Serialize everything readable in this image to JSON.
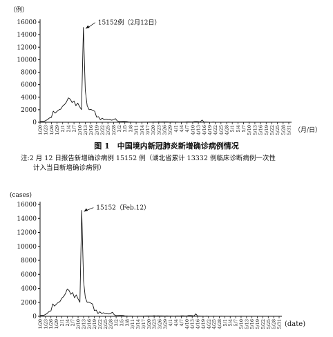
{
  "chart_data": [
    {
      "type": "line",
      "y_unit": "（例）",
      "x_unit": "（月/日）",
      "ylim": [
        0,
        16000
      ],
      "yticks": [
        0,
        2000,
        4000,
        6000,
        8000,
        10000,
        12000,
        14000,
        16000
      ],
      "x_tick_labels": [
        "1/20",
        "1/23",
        "1/26",
        "1/29",
        "2/1",
        "2/4",
        "2/7",
        "2/10",
        "2/13",
        "2/16",
        "2/19",
        "2/22",
        "2/25",
        "2/28",
        "3/2",
        "3/5",
        "3/8",
        "3/11",
        "3/14",
        "3/17",
        "3/20",
        "3/23",
        "3/26",
        "3/29",
        "4/1",
        "4/4",
        "4/7",
        "4/10",
        "4/13",
        "4/16",
        "4/19",
        "4/22",
        "4/25",
        "4/28",
        "5/1",
        "5/4",
        "5/7",
        "5/10",
        "5/13",
        "5/16",
        "5/19",
        "5/22",
        "5/25",
        "5/28",
        "5/31"
      ],
      "annotation": "15152例（2月12日）",
      "title": "图 1　中国境内新冠肺炎新增确诊病例情况",
      "note_line1": "注:2 月 12 日报告新增确诊病例 15152 例（湖北省累计 13332 例临床诊断病例一次性",
      "note_line2": "计入当日新增确诊病例）",
      "series": [
        {
          "x": [
            "1/20",
            "1/21",
            "1/22",
            "1/23",
            "1/24",
            "1/25",
            "1/26",
            "1/27",
            "1/28",
            "1/29",
            "1/30",
            "1/31",
            "2/1",
            "2/2",
            "2/3",
            "2/4",
            "2/5",
            "2/6",
            "2/7",
            "2/8",
            "2/9",
            "2/10",
            "2/11",
            "2/12",
            "2/13",
            "2/14",
            "2/15",
            "2/16",
            "2/17",
            "2/18",
            "2/19",
            "2/20",
            "2/21",
            "2/22",
            "2/23",
            "2/24",
            "2/25",
            "2/26",
            "2/27",
            "2/28",
            "2/29",
            "3/1",
            "3/2",
            "3/3",
            "3/4",
            "3/5",
            "3/6",
            "3/7",
            "3/8",
            "3/9",
            "3/10",
            "3/11",
            "3/12",
            "3/13",
            "3/14",
            "3/15",
            "3/16",
            "3/17",
            "3/18",
            "3/19",
            "3/20",
            "3/21",
            "3/22",
            "3/23",
            "3/24",
            "3/25",
            "3/26",
            "3/27",
            "3/28",
            "3/29",
            "3/30",
            "3/31",
            "4/1",
            "4/2",
            "4/3",
            "4/4",
            "4/5",
            "4/6",
            "4/7",
            "4/8",
            "4/9",
            "4/10",
            "4/11",
            "4/12",
            "4/13",
            "4/14",
            "4/15",
            "4/16",
            "4/17",
            "4/18",
            "4/19",
            "4/20",
            "4/21",
            "4/22",
            "4/23",
            "4/24",
            "4/25",
            "4/26",
            "4/27",
            "4/28",
            "4/29",
            "4/30",
            "5/1",
            "5/2",
            "5/3",
            "5/4",
            "5/5",
            "5/6",
            "5/7",
            "5/8",
            "5/9",
            "5/10",
            "5/11",
            "5/12",
            "5/13",
            "5/14",
            "5/15",
            "5/16",
            "5/17",
            "5/18",
            "5/19",
            "5/20",
            "5/21",
            "5/22",
            "5/23",
            "5/24",
            "5/25",
            "5/26",
            "5/27",
            "5/28",
            "5/29",
            "5/30",
            "5/31"
          ],
          "values": [
            77,
            149,
            131,
            259,
            444,
            688,
            769,
            1771,
            1459,
            1737,
            1982,
            2102,
            2590,
            2829,
            3235,
            3887,
            3694,
            3143,
            3399,
            2656,
            3062,
            2478,
            2015,
            15152,
            5090,
            2641,
            2009,
            2048,
            1886,
            1749,
            820,
            889,
            397,
            648,
            409,
            508,
            406,
            433,
            327,
            427,
            573,
            202,
            125,
            119,
            139,
            143,
            99,
            44,
            40,
            19,
            24,
            15,
            8,
            11,
            20,
            16,
            21,
            13,
            34,
            39,
            41,
            46,
            39,
            78,
            47,
            67,
            55,
            54,
            45,
            31,
            48,
            36,
            35,
            31,
            19,
            30,
            39,
            32,
            62,
            63,
            42,
            46,
            99,
            108,
            89,
            46,
            352,
            26,
            27,
            16,
            12,
            11,
            30,
            11,
            10,
            6,
            12,
            11,
            3,
            6,
            22,
            4,
            1,
            2,
            2,
            1,
            2,
            1,
            4,
            1,
            1,
            17,
            7,
            3,
            6,
            3,
            5,
            1,
            3,
            4,
            0,
            2,
            3,
            2,
            4,
            1,
            0,
            1,
            0,
            2,
            0,
            4,
            0
          ]
        }
      ]
    },
    {
      "type": "line",
      "y_unit": "(cases)",
      "x_unit": "(date)",
      "ylim": [
        0,
        16000
      ],
      "yticks": [
        0,
        2000,
        4000,
        6000,
        8000,
        10000,
        12000,
        14000,
        16000
      ],
      "x_tick_labels": [
        "1/20",
        "1/23",
        "1/26",
        "1/29",
        "2/1",
        "2/4",
        "2/7",
        "2/10",
        "2/13",
        "2/16",
        "2/19",
        "2/22",
        "2/25",
        "2/28",
        "3/2",
        "3/5",
        "3/8",
        "3/11",
        "3/14",
        "3/17",
        "3/20",
        "3/23",
        "3/26",
        "3/29",
        "4/1",
        "4/4",
        "4/7",
        "4/10",
        "4/13",
        "4/16",
        "4/19",
        "4/22",
        "4/25",
        "4/28",
        "5/1",
        "5/4",
        "5/7",
        "5/10",
        "5/13",
        "5/16",
        "5/19",
        "5/22",
        "5/25",
        "5/28",
        "5/31"
      ],
      "annotation": "15152（Feb.12）",
      "series": [
        {
          "x": "same as first chart",
          "values": "same as first chart"
        }
      ]
    }
  ]
}
